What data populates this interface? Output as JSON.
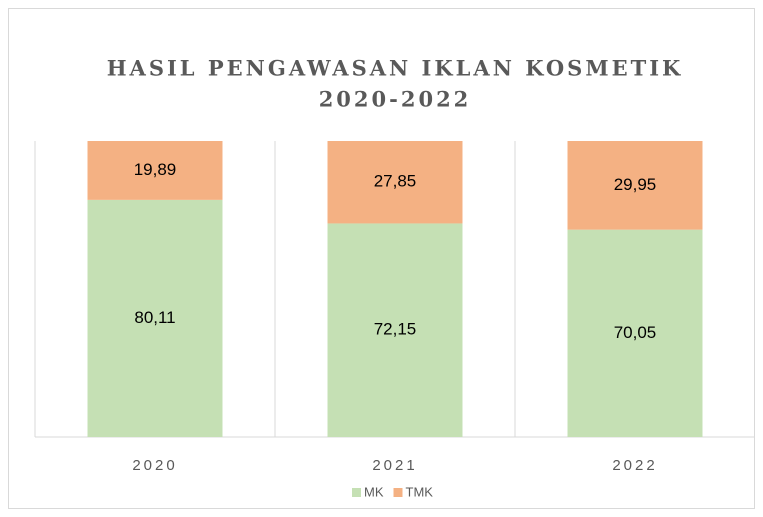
{
  "chart_data": {
    "type": "stacked_bar",
    "title": [
      "HASIL PENGAWASAN IKLAN KOSMETIK",
      "2020-2022"
    ],
    "categories": [
      "2020",
      "2021",
      "2022"
    ],
    "series": [
      {
        "name": "MK",
        "color": "#c5e0b4",
        "values": [
          80.11,
          72.15,
          70.05
        ],
        "value_labels": [
          "80,11",
          "72,15",
          "70,05"
        ]
      },
      {
        "name": "TMK",
        "color": "#f4b183",
        "values": [
          19.89,
          27.85,
          29.95
        ],
        "value_labels": [
          "19,89",
          "27,85",
          "29,95"
        ]
      }
    ]
  }
}
